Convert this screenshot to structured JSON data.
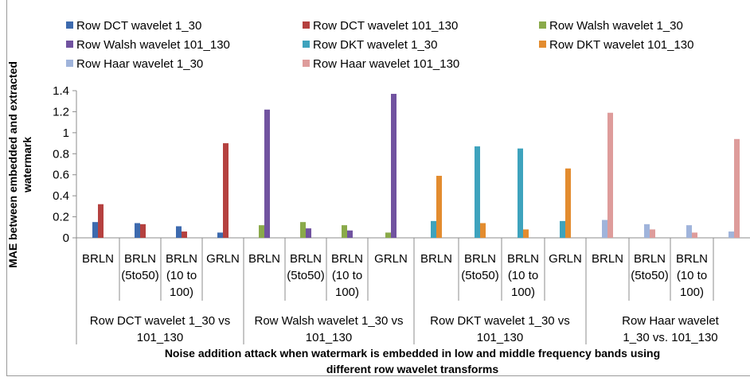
{
  "chart_data": {
    "type": "bar",
    "title": "",
    "xlabel": "Noise addition attack when watermark is embedded in low and middle frequency bands using different row wavelet transforms",
    "xlabel_lines": [
      "Noise addition attack when watermark is embedded in low and middle frequency bands using",
      "different row wavelet transforms"
    ],
    "ylabel": "MAE between embedded and extracted watermark",
    "ylabel_lines": [
      "MAE between embedded and extracted",
      "watermark"
    ],
    "ylim": [
      0,
      1.4
    ],
    "yticks": [
      "0",
      "0.2",
      "0.4",
      "0.6",
      "0.8",
      "1",
      "1.2",
      "1.4"
    ],
    "grid": false,
    "legend_position": "top",
    "groups": [
      {
        "label_lines": [
          "Row DCT wavelet 1_30 vs",
          "101_130"
        ],
        "categories": [
          {
            "lines": [
              "BRLN"
            ]
          },
          {
            "lines": [
              "BRLN",
              "(5to50)"
            ]
          },
          {
            "lines": [
              "BRLN",
              "(10 to",
              "100)"
            ]
          },
          {
            "lines": [
              "GRLN"
            ]
          }
        ]
      },
      {
        "label_lines": [
          "Row Walsh wavelet 1_30 vs",
          "101_130"
        ],
        "categories": [
          {
            "lines": [
              "BRLN"
            ]
          },
          {
            "lines": [
              "BRLN",
              "(5to50)"
            ]
          },
          {
            "lines": [
              "BRLN",
              "(10 to",
              "100)"
            ]
          },
          {
            "lines": [
              "GRLN"
            ]
          }
        ]
      },
      {
        "label_lines": [
          "Row DKT wavelet 1_30 vs",
          "101_130"
        ],
        "categories": [
          {
            "lines": [
              "BRLN"
            ]
          },
          {
            "lines": [
              "BRLN",
              "(5to50)"
            ]
          },
          {
            "lines": [
              "BRLN",
              "(10 to",
              "100)"
            ]
          },
          {
            "lines": [
              "GRLN"
            ]
          }
        ]
      },
      {
        "label_lines": [
          "Row Haar wavelet",
          "1_30 vs. 101_130"
        ],
        "categories": [
          {
            "lines": [
              "BRLN"
            ]
          },
          {
            "lines": [
              "BRLN",
              "(5to50)"
            ]
          },
          {
            "lines": [
              "BRLN",
              "(10 to",
              "100)"
            ]
          },
          {
            "lines": [
              ""
            ]
          }
        ]
      }
    ],
    "series": [
      {
        "name": "Row DCT wavelet 1_30",
        "color": "#3d6aae",
        "values": [
          0.15,
          0.14,
          0.11,
          0.05,
          null,
          null,
          null,
          null,
          null,
          null,
          null,
          null,
          null,
          null,
          null,
          null
        ]
      },
      {
        "name": "Row DCT wavelet 101_130",
        "color": "#b5413f",
        "values": [
          0.32,
          0.13,
          0.06,
          0.9,
          null,
          null,
          null,
          null,
          null,
          null,
          null,
          null,
          null,
          null,
          null,
          null
        ]
      },
      {
        "name": "Row Walsh wavelet 1_30",
        "color": "#8aaa4a",
        "values": [
          null,
          null,
          null,
          null,
          0.12,
          0.15,
          0.12,
          0.05,
          null,
          null,
          null,
          null,
          null,
          null,
          null,
          null
        ]
      },
      {
        "name": "Row Walsh wavelet 101_130",
        "color": "#7153a0",
        "values": [
          null,
          null,
          null,
          null,
          1.22,
          0.09,
          0.07,
          1.37,
          null,
          null,
          null,
          null,
          null,
          null,
          null,
          null
        ]
      },
      {
        "name": "Row DKT wavelet 1_30",
        "color": "#3ea3bd",
        "values": [
          null,
          null,
          null,
          null,
          null,
          null,
          null,
          null,
          0.16,
          0.87,
          0.85,
          0.16,
          null,
          null,
          null,
          null
        ]
      },
      {
        "name": "Row DKT wavelet 101_130",
        "color": "#e38c2f",
        "values": [
          null,
          null,
          null,
          null,
          null,
          null,
          null,
          null,
          0.59,
          0.14,
          0.08,
          0.66,
          null,
          null,
          null,
          null
        ]
      },
      {
        "name": "Row Haar wavelet 1_30",
        "color": "#a0b4db",
        "values": [
          null,
          null,
          null,
          null,
          null,
          null,
          null,
          null,
          null,
          null,
          null,
          null,
          0.17,
          0.13,
          0.12,
          0.06
        ]
      },
      {
        "name": "Row Haar wavelet 101_130",
        "color": "#de9c9b",
        "values": [
          null,
          null,
          null,
          null,
          null,
          null,
          null,
          null,
          null,
          null,
          null,
          null,
          1.19,
          0.08,
          0.05,
          0.94
        ]
      }
    ]
  }
}
